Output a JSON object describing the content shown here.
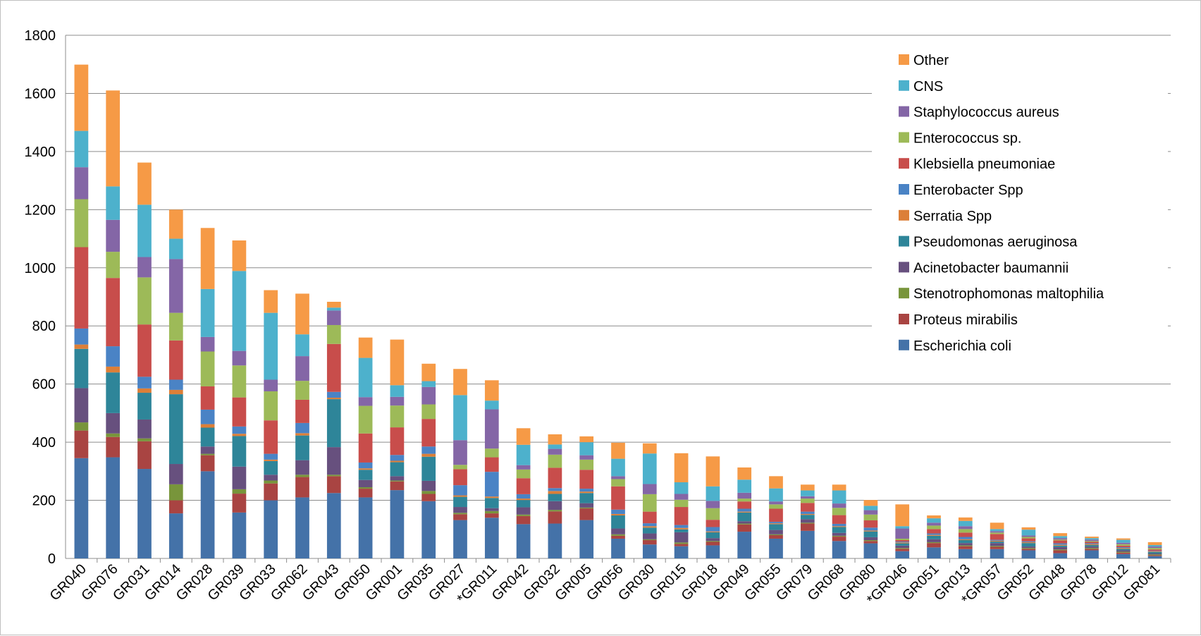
{
  "chart_data": {
    "type": "bar",
    "stacked": true,
    "title": "",
    "xlabel": "",
    "ylabel": "",
    "ylim": [
      0,
      1800
    ],
    "yticks": [
      0,
      200,
      400,
      600,
      800,
      1000,
      1200,
      1400,
      1600,
      1800
    ],
    "grid": true,
    "legend_position": "right",
    "categories": [
      "GR040",
      "GR076",
      "GR031",
      "GR014",
      "GR028",
      "GR039",
      "GR033",
      "GR062",
      "GR043",
      "GR050",
      "GR001",
      "GR035",
      "GR027",
      "*GR011",
      "GR042",
      "GR032",
      "GR005",
      "GR056",
      "GR030",
      "GR015",
      "GR018",
      "GR049",
      "GR055",
      "GR079",
      "GR068",
      "GR080",
      "*GR046",
      "GR051",
      "GR013",
      "*GR057",
      "GR052",
      "GR048",
      "GR078",
      "GR012",
      "GR081"
    ],
    "series": [
      {
        "name": "Escherichia coli",
        "color": "#4472A8",
        "values": [
          345,
          348,
          308,
          155,
          300,
          158,
          200,
          210,
          225,
          210,
          235,
          197,
          132,
          140,
          118,
          120,
          132,
          68,
          48,
          42,
          45,
          92,
          68,
          95,
          60,
          52,
          25,
          38,
          32,
          32,
          28,
          18,
          28,
          15,
          8
        ]
      },
      {
        "name": "Proteus mirabilis",
        "color": "#A94442",
        "values": [
          95,
          70,
          95,
          45,
          55,
          65,
          58,
          70,
          58,
          30,
          30,
          25,
          20,
          15,
          28,
          42,
          40,
          10,
          15,
          8,
          12,
          25,
          12,
          25,
          15,
          8,
          8,
          15,
          10,
          8,
          5,
          10,
          5,
          5,
          3
        ]
      },
      {
        "name": "Stenotrophomonas maltophilia",
        "color": "#78953B",
        "values": [
          28,
          12,
          10,
          55,
          5,
          15,
          10,
          8,
          5,
          5,
          3,
          10,
          5,
          8,
          5,
          5,
          3,
          5,
          3,
          5,
          3,
          3,
          3,
          3,
          3,
          3,
          3,
          3,
          3,
          3,
          3,
          3,
          3,
          3,
          3
        ]
      },
      {
        "name": "Acinetobacter baumannii",
        "color": "#67507E",
        "values": [
          118,
          70,
          65,
          70,
          25,
          78,
          20,
          50,
          95,
          25,
          15,
          35,
          20,
          10,
          25,
          30,
          15,
          20,
          20,
          35,
          10,
          8,
          15,
          12,
          10,
          10,
          8,
          10,
          8,
          10,
          5,
          8,
          5,
          5,
          3
        ]
      },
      {
        "name": "Pseudomonas aeruginosa",
        "color": "#2E8599",
        "values": [
          135,
          140,
          92,
          240,
          65,
          105,
          47,
          85,
          165,
          35,
          48,
          83,
          35,
          35,
          25,
          25,
          35,
          45,
          20,
          10,
          20,
          30,
          20,
          15,
          20,
          20,
          8,
          12,
          10,
          5,
          12,
          5,
          5,
          5,
          5
        ]
      },
      {
        "name": "Serratia Spp",
        "color": "#DC7F38",
        "values": [
          15,
          20,
          15,
          15,
          12,
          8,
          5,
          8,
          5,
          5,
          5,
          10,
          5,
          5,
          5,
          10,
          5,
          5,
          5,
          5,
          3,
          3,
          3,
          3,
          3,
          3,
          3,
          3,
          3,
          3,
          3,
          3,
          3,
          3,
          2
        ]
      },
      {
        "name": "Enterobacter Spp",
        "color": "#4A83C5",
        "values": [
          55,
          70,
          40,
          35,
          50,
          25,
          20,
          35,
          20,
          20,
          20,
          25,
          35,
          85,
          15,
          10,
          10,
          15,
          10,
          10,
          15,
          10,
          5,
          8,
          8,
          10,
          3,
          5,
          8,
          3,
          3,
          5,
          3,
          3,
          2
        ]
      },
      {
        "name": "Klebsiella pneumoniae",
        "color": "#C84D4B",
        "values": [
          280,
          235,
          180,
          135,
          80,
          100,
          115,
          80,
          165,
          100,
          95,
          95,
          55,
          50,
          55,
          70,
          65,
          80,
          40,
          62,
          25,
          25,
          45,
          30,
          30,
          25,
          5,
          15,
          15,
          20,
          10,
          10,
          5,
          5,
          5
        ]
      },
      {
        "name": "Enterococcus sp.",
        "color": "#9DBA58",
        "values": [
          165,
          90,
          162,
          95,
          120,
          110,
          100,
          65,
          65,
          95,
          75,
          50,
          15,
          30,
          30,
          45,
          35,
          25,
          60,
          25,
          40,
          10,
          15,
          15,
          25,
          20,
          5,
          12,
          12,
          5,
          5,
          3,
          3,
          5,
          5
        ]
      },
      {
        "name": "Staphylococcus aureus",
        "color": "#8466A6",
        "values": [
          110,
          110,
          70,
          185,
          50,
          50,
          40,
          85,
          50,
          30,
          30,
          60,
          85,
          135,
          15,
          20,
          15,
          10,
          35,
          20,
          25,
          20,
          10,
          8,
          15,
          15,
          35,
          10,
          10,
          5,
          5,
          5,
          5,
          5,
          5
        ]
      },
      {
        "name": "CNS",
        "color": "#4DB1CC",
        "values": [
          125,
          115,
          180,
          70,
          165,
          275,
          230,
          75,
          10,
          135,
          40,
          20,
          155,
          30,
          70,
          15,
          45,
          60,
          105,
          40,
          50,
          45,
          45,
          20,
          45,
          15,
          8,
          15,
          18,
          7,
          20,
          7,
          5,
          10,
          5
        ]
      },
      {
        "name": "Other",
        "color": "#F69A46",
        "values": [
          228,
          330,
          145,
          100,
          210,
          105,
          78,
          140,
          20,
          70,
          157,
          60,
          90,
          70,
          57,
          35,
          20,
          55,
          35,
          100,
          103,
          42,
          42,
          20,
          20,
          20,
          75,
          10,
          12,
          22,
          8,
          10,
          5,
          5,
          10
        ]
      }
    ]
  }
}
